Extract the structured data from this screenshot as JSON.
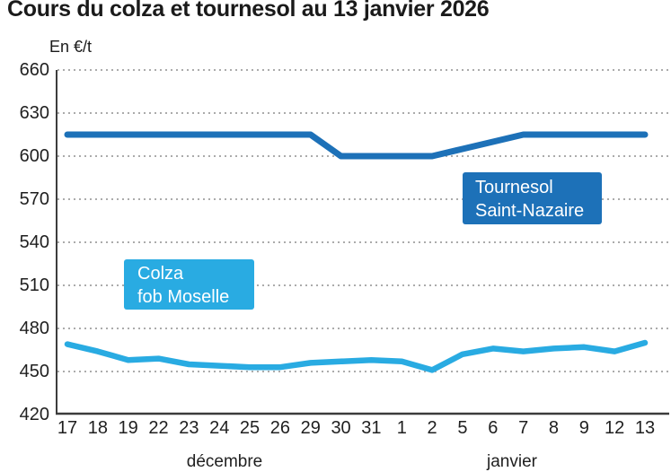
{
  "title": "Cours du colza et tournesol au 13 janvier 2026",
  "chart_data": {
    "type": "line",
    "title": "Cours du colza et tournesol au 13 janvier 2026",
    "ylabel": "En €/t",
    "ylim": [
      420,
      660
    ],
    "y_ticks": [
      660,
      630,
      600,
      570,
      540,
      510,
      480,
      450,
      420
    ],
    "grid": "horizontal dotted gridlines at each y tick",
    "grid_color": "#ababab",
    "axis_color": "#3c3c3c",
    "x_tick_labels": [
      "17",
      "18",
      "19",
      "22",
      "23",
      "24",
      "25",
      "26",
      "29",
      "30",
      "31",
      "1",
      "2",
      "5",
      "6",
      "7",
      "8",
      "9",
      "12",
      "13"
    ],
    "x_axis_months": [
      "décembre",
      "janvier"
    ],
    "legend_position": "inline boxes on plot",
    "series": [
      {
        "name": "Tournesol Saint-Nazaire",
        "label_lines": [
          "Tournesol",
          "Saint-Nazaire"
        ],
        "color": "#1d71b8",
        "values": [
          615,
          615,
          615,
          615,
          615,
          615,
          615,
          615,
          615,
          600,
          600,
          600,
          600,
          605,
          610,
          615,
          615,
          615,
          615,
          615
        ]
      },
      {
        "name": "Colza fob Moselle",
        "label_lines": [
          "Colza",
          "fob Moselle"
        ],
        "color": "#29abe2",
        "values": [
          469,
          464,
          458,
          459,
          455,
          454,
          453,
          453,
          456,
          457,
          458,
          457,
          451,
          462,
          466,
          464,
          466,
          467,
          464,
          470
        ]
      }
    ]
  }
}
